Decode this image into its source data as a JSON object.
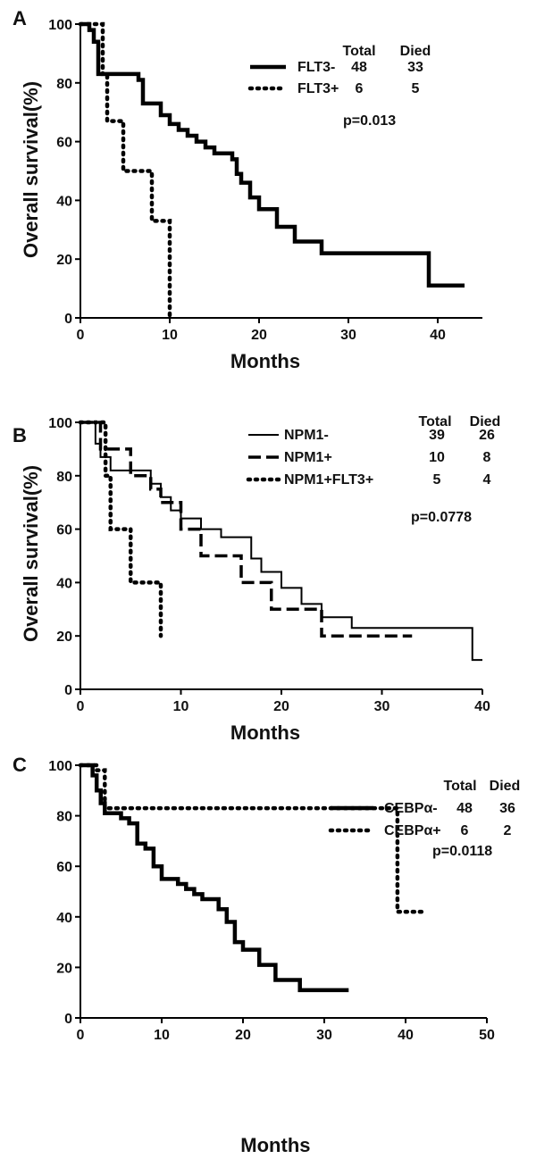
{
  "chart_data": [
    {
      "type": "line",
      "panel": "A",
      "xlabel": "Months",
      "ylabel": "Overall survival(%)",
      "xlim": [
        0,
        45
      ],
      "ylim": [
        0,
        100
      ],
      "x_ticks": [
        "0",
        "10",
        "20",
        "30",
        "40"
      ],
      "y_ticks": [
        "0",
        "20",
        "40",
        "60",
        "80",
        "100"
      ],
      "legend_headers": [
        "Total",
        "Died"
      ],
      "pvalue": "p=0.013",
      "series": [
        {
          "name": "FLT3-",
          "style": "thick-solid",
          "total": "48",
          "died": "33",
          "x": [
            0,
            1,
            1.5,
            2,
            4,
            6.5,
            7,
            9,
            10,
            11,
            12,
            13,
            14,
            15,
            17,
            17.5,
            18,
            19,
            20,
            22,
            24,
            27,
            39,
            43
          ],
          "y": [
            100,
            98,
            94,
            83,
            83,
            81,
            73,
            69,
            66,
            64,
            62,
            60,
            58,
            56,
            54,
            49,
            46,
            41,
            37,
            31,
            26,
            22,
            11,
            11
          ]
        },
        {
          "name": "FLT3+",
          "style": "dotted",
          "total": "6",
          "died": "5",
          "x": [
            0,
            2.5,
            3,
            4.8,
            7.5,
            8,
            10
          ],
          "y": [
            100,
            83,
            67,
            50,
            50,
            33,
            0
          ]
        }
      ]
    },
    {
      "type": "line",
      "panel": "B",
      "xlabel": "Months",
      "ylabel": "Overall survival(%)",
      "xlim": [
        0,
        40
      ],
      "ylim": [
        0,
        100
      ],
      "x_ticks": [
        "0",
        "10",
        "20",
        "30",
        "40"
      ],
      "y_ticks": [
        "0",
        "20",
        "40",
        "60",
        "80",
        "100"
      ],
      "legend_headers": [
        "Total",
        "Died"
      ],
      "pvalue": "p=0.0778",
      "series": [
        {
          "name": "NPM1-",
          "style": "thin-solid",
          "total": "39",
          "died": "26",
          "x": [
            0,
            1.5,
            2,
            3,
            7,
            8,
            9,
            10,
            12,
            14,
            17,
            18,
            20,
            22,
            24,
            27,
            39,
            40
          ],
          "y": [
            100,
            92,
            87,
            82,
            77,
            72,
            67,
            64,
            60,
            57,
            49,
            44,
            38,
            32,
            27,
            23,
            11,
            11
          ]
        },
        {
          "name": "NPM1+",
          "style": "dashed",
          "total": "10",
          "died": "8",
          "x": [
            0,
            2,
            5,
            7,
            8,
            10,
            12,
            16,
            19,
            24,
            33
          ],
          "y": [
            100,
            90,
            80,
            75,
            70,
            60,
            50,
            40,
            30,
            20,
            20
          ]
        },
        {
          "name": "NPM1+FLT3+",
          "style": "dotted",
          "total": "5",
          "died": "4",
          "x": [
            0,
            2.5,
            3,
            5,
            8
          ],
          "y": [
            100,
            80,
            60,
            40,
            20
          ]
        }
      ]
    },
    {
      "type": "line",
      "panel": "C",
      "xlabel": "Months",
      "ylabel": "",
      "xlim": [
        0,
        50
      ],
      "ylim": [
        0,
        100
      ],
      "x_ticks": [
        "0",
        "10",
        "20",
        "30",
        "40",
        "50"
      ],
      "y_ticks": [
        "0",
        "20",
        "40",
        "60",
        "80",
        "100"
      ],
      "legend_headers": [
        "Total",
        "Died"
      ],
      "pvalue": "p=0.0118",
      "series": [
        {
          "name": "CEBPα-",
          "style": "thick-solid",
          "total": "48",
          "died": "36",
          "x": [
            0,
            1.5,
            2,
            2.5,
            3,
            5,
            6,
            7,
            8,
            9,
            10,
            12,
            13,
            14,
            15,
            17,
            18,
            19,
            20,
            22,
            24,
            27,
            33
          ],
          "y": [
            100,
            96,
            90,
            85,
            81,
            79,
            77,
            69,
            67,
            60,
            55,
            53,
            51,
            49,
            47,
            43,
            38,
            30,
            27,
            21,
            15,
            11,
            11
          ]
        },
        {
          "name": "CEBPα+",
          "style": "dotted",
          "total": "6",
          "died": "2",
          "x": [
            0,
            2,
            3,
            39,
            42
          ],
          "y": [
            100,
            98,
            83,
            42,
            42
          ]
        }
      ]
    }
  ]
}
